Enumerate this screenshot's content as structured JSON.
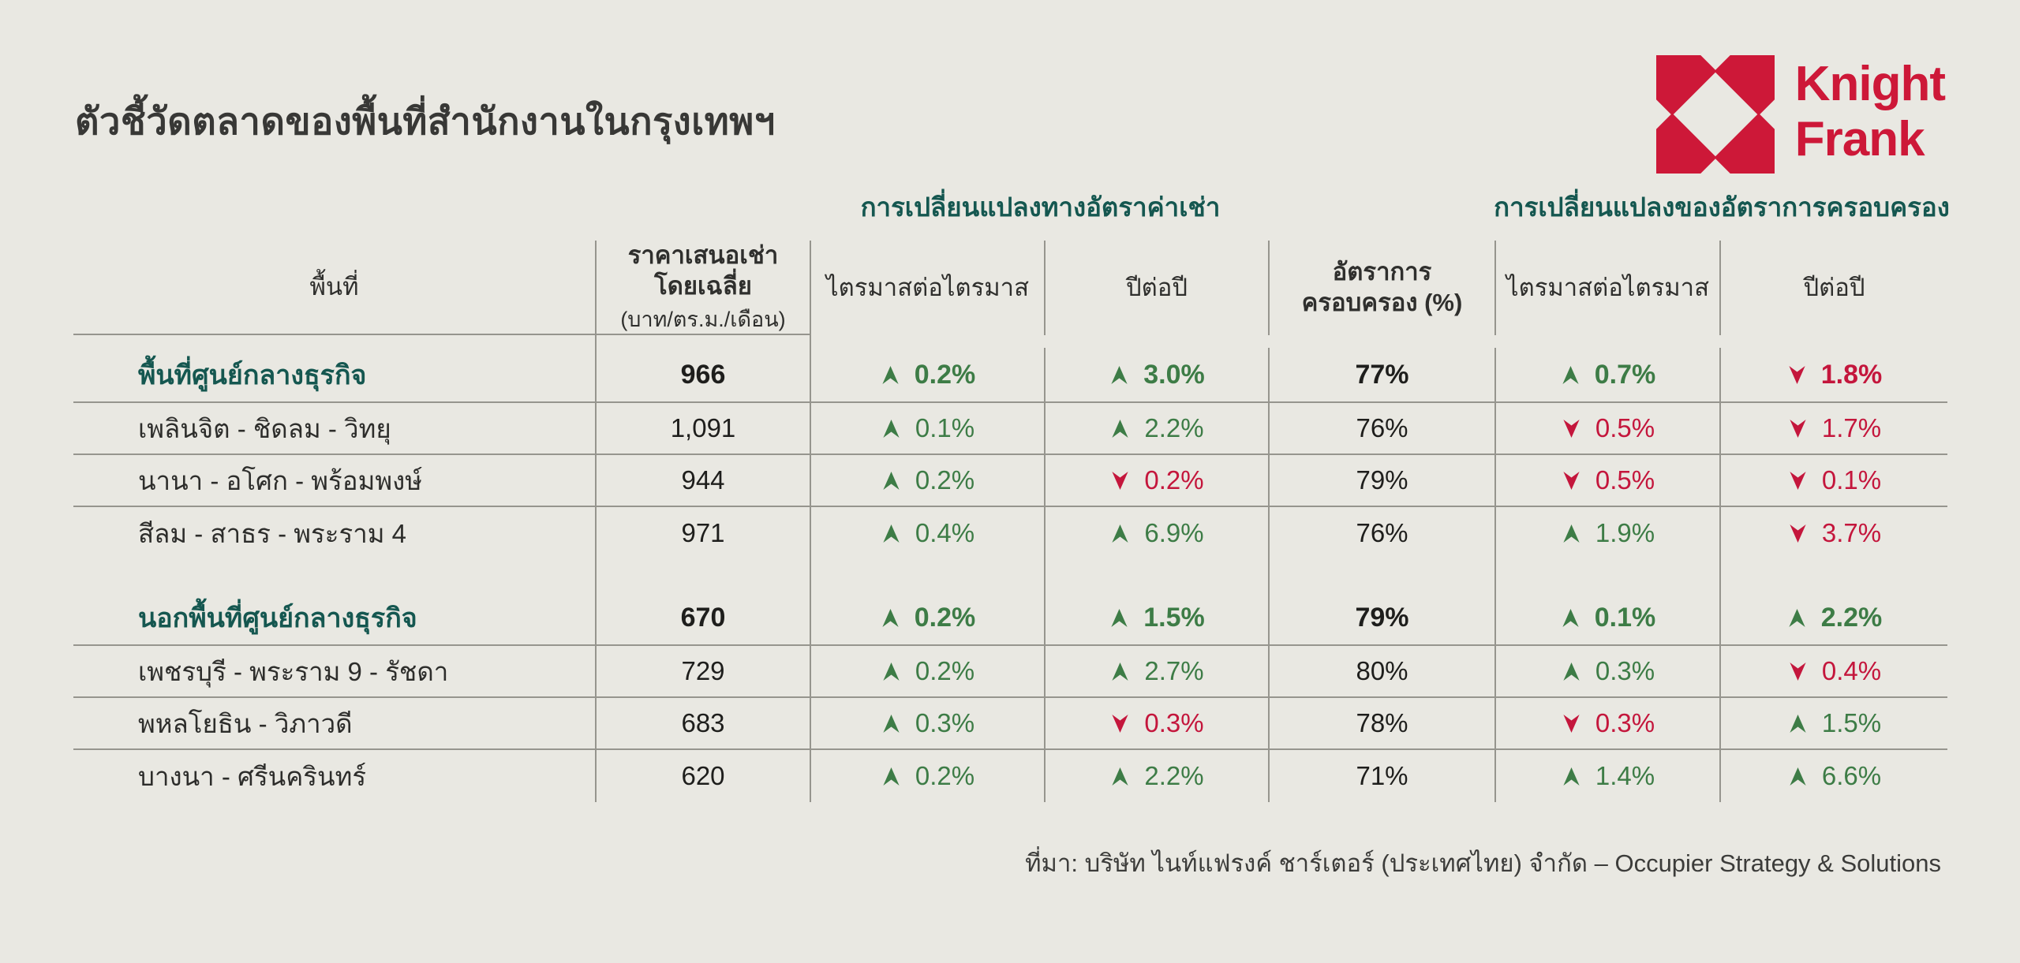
{
  "page": {
    "title": "ตัวชี้วัดตลาดของพื้นที่สำนักงานในกรุงเทพฯ",
    "source": "ที่มา: บริษัท ไนท์แฟรงค์ ชาร์เตอร์ (ประเทศไทย) จำกัด – Occupier Strategy & Solutions",
    "background_color": "#e9e8e2"
  },
  "logo": {
    "brand_line1": "Knight",
    "brand_line2": "Frank",
    "color": "#cd1838",
    "mark": "knight-frank-x-mark"
  },
  "colors": {
    "teal": "#155750",
    "green": "#3d7c46",
    "red": "#c4163c",
    "grid_line": "#96958e",
    "text": "#2d2d2b"
  },
  "table": {
    "group_headers": [
      {
        "label": "การเปลี่ยนแปลงทางอัตราค่าเช่า"
      },
      {
        "label": "การเปลี่ยนแปลงของอัตราการครอบครอง"
      }
    ],
    "columns": [
      {
        "label": "พื้นที่"
      },
      {
        "label_line1": "ราคาเสนอเช่า",
        "label_line2": "โดยเฉลี่ย",
        "label_line3": "(บาท/ตร.ม./เดือน)"
      },
      {
        "label": "ไตรมาสต่อไตรมาส"
      },
      {
        "label": "ปีต่อปี"
      },
      {
        "label_line1": "อัตราการ",
        "label_line2": "ครอบครอง (%)"
      },
      {
        "label": "ไตรมาสต่อไตรมาส"
      },
      {
        "label": "ปีต่อปี"
      }
    ],
    "rows": [
      {
        "area": "พื้นที่ศูนย์กลางธุรกิจ",
        "bold": true,
        "rent": "966",
        "rent_qoq": {
          "direction": "up",
          "value": "0.2%"
        },
        "rent_yoy": {
          "direction": "up",
          "value": "3.0%"
        },
        "occupancy": "77%",
        "occ_qoq": {
          "direction": "up",
          "value": "0.7%"
        },
        "occ_yoy": {
          "direction": "down",
          "value": "1.8%"
        },
        "divider_below": true
      },
      {
        "area": "เพลินจิต - ชิดลม - วิทยุ",
        "bold": false,
        "rent": "1,091",
        "rent_qoq": {
          "direction": "up",
          "value": "0.1%"
        },
        "rent_yoy": {
          "direction": "up",
          "value": "2.2%"
        },
        "occupancy": "76%",
        "occ_qoq": {
          "direction": "down",
          "value": "0.5%"
        },
        "occ_yoy": {
          "direction": "down",
          "value": "1.7%"
        },
        "divider_below": true
      },
      {
        "area": "นานา - อโศก - พร้อมพงษ์",
        "bold": false,
        "rent": "944",
        "rent_qoq": {
          "direction": "up",
          "value": "0.2%"
        },
        "rent_yoy": {
          "direction": "down",
          "value": "0.2%"
        },
        "occupancy": "79%",
        "occ_qoq": {
          "direction": "down",
          "value": "0.5%"
        },
        "occ_yoy": {
          "direction": "down",
          "value": "0.1%"
        },
        "divider_below": true
      },
      {
        "area": "สีลม - สาธร - พระราม 4",
        "bold": false,
        "rent": "971",
        "rent_qoq": {
          "direction": "up",
          "value": "0.4%"
        },
        "rent_yoy": {
          "direction": "up",
          "value": "6.9%"
        },
        "occupancy": "76%",
        "occ_qoq": {
          "direction": "up",
          "value": "1.9%"
        },
        "occ_yoy": {
          "direction": "down",
          "value": "3.7%"
        },
        "divider_below": false
      },
      {
        "area": "นอกพื้นที่ศูนย์กลางธุรกิจ",
        "bold": true,
        "gap_above": true,
        "rent": "670",
        "rent_qoq": {
          "direction": "up",
          "value": "0.2%"
        },
        "rent_yoy": {
          "direction": "up",
          "value": "1.5%"
        },
        "occupancy": "79%",
        "occ_qoq": {
          "direction": "up",
          "value": "0.1%"
        },
        "occ_yoy": {
          "direction": "up",
          "value": "2.2%"
        },
        "divider_below": true
      },
      {
        "area": "เพชรบุรี - พระราม 9 - รัชดา",
        "bold": false,
        "rent": "729",
        "rent_qoq": {
          "direction": "up",
          "value": "0.2%"
        },
        "rent_yoy": {
          "direction": "up",
          "value": "2.7%"
        },
        "occupancy": "80%",
        "occ_qoq": {
          "direction": "up",
          "value": "0.3%"
        },
        "occ_yoy": {
          "direction": "down",
          "value": "0.4%"
        },
        "divider_below": true
      },
      {
        "area": "พหลโยธิน - วิภาวดี",
        "bold": false,
        "rent": "683",
        "rent_qoq": {
          "direction": "up",
          "value": "0.3%"
        },
        "rent_yoy": {
          "direction": "down",
          "value": "0.3%"
        },
        "occupancy": "78%",
        "occ_qoq": {
          "direction": "down",
          "value": "0.3%"
        },
        "occ_yoy": {
          "direction": "up",
          "value": "1.5%"
        },
        "divider_below": true
      },
      {
        "area": "บางนา - ศรีนครินทร์",
        "bold": false,
        "rent": "620",
        "rent_qoq": {
          "direction": "up",
          "value": "0.2%"
        },
        "rent_yoy": {
          "direction": "up",
          "value": "2.2%"
        },
        "occupancy": "71%",
        "occ_qoq": {
          "direction": "up",
          "value": "1.4%"
        },
        "occ_yoy": {
          "direction": "up",
          "value": "6.6%"
        },
        "divider_below": false
      }
    ]
  },
  "chart_data": {
    "type": "table",
    "title": "ตัวชี้วัดตลาดของพื้นที่สำนักงานในกรุงเทพฯ",
    "columns": [
      "พื้นที่",
      "ราคาเสนอเช่าโดยเฉลี่ย (บาท/ตร.ม./เดือน)",
      "ค่าเช่า ไตรมาสต่อไตรมาส",
      "ค่าเช่า ปีต่อปี",
      "อัตราการครอบครอง (%)",
      "ครอบครอง ไตรมาสต่อไตรมาส",
      "ครอบครอง ปีต่อปี"
    ],
    "rows": [
      [
        "พื้นที่ศูนย์กลางธุรกิจ",
        966,
        "+0.2%",
        "+3.0%",
        "77%",
        "+0.7%",
        "-1.8%"
      ],
      [
        "เพลินจิต - ชิดลม - วิทยุ",
        1091,
        "+0.1%",
        "+2.2%",
        "76%",
        "-0.5%",
        "-1.7%"
      ],
      [
        "นานา - อโศก - พร้อมพงษ์",
        944,
        "+0.2%",
        "-0.2%",
        "79%",
        "-0.5%",
        "-0.1%"
      ],
      [
        "สีลม - สาธร - พระราม 4",
        971,
        "+0.4%",
        "+6.9%",
        "76%",
        "+1.9%",
        "-3.7%"
      ],
      [
        "นอกพื้นที่ศูนย์กลางธุรกิจ",
        670,
        "+0.2%",
        "+1.5%",
        "79%",
        "+0.1%",
        "+2.2%"
      ],
      [
        "เพชรบุรี - พระราม 9 - รัชดา",
        729,
        "+0.2%",
        "+2.7%",
        "80%",
        "+0.3%",
        "-0.4%"
      ],
      [
        "พหลโยธิน - วิภาวดี",
        683,
        "+0.3%",
        "-0.3%",
        "78%",
        "-0.3%",
        "+1.5%"
      ],
      [
        "บางนา - ศรีนครินทร์",
        620,
        "+0.2%",
        "+2.2%",
        "71%",
        "+1.4%",
        "+6.6%"
      ]
    ]
  }
}
